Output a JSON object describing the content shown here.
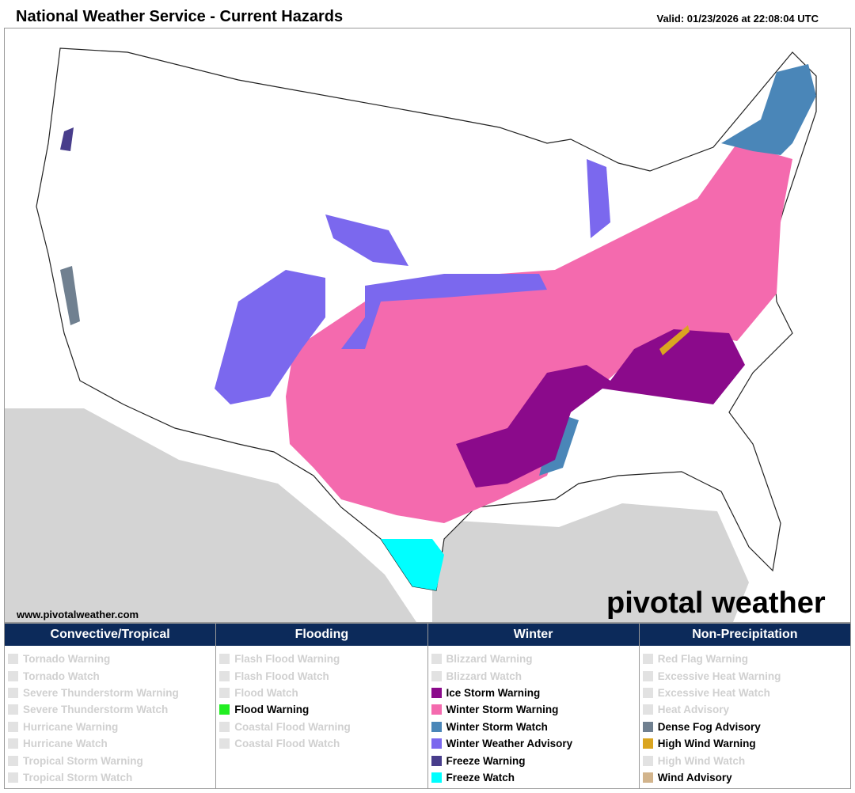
{
  "header": {
    "title": "National Weather Service - Current Hazards",
    "valid": "Valid: 01/23/2026 at 22:08:04 UTC"
  },
  "map": {
    "source": "www.pivotalweather.com",
    "logo": "pivotal weather"
  },
  "legend": [
    {
      "title": "Convective/Tropical",
      "items": [
        {
          "label": "Tornado Warning",
          "active": false
        },
        {
          "label": "Tornado Watch",
          "active": false
        },
        {
          "label": "Severe Thunderstorm Warning",
          "active": false
        },
        {
          "label": "Severe Thunderstorm Watch",
          "active": false
        },
        {
          "label": "Hurricane Warning",
          "active": false
        },
        {
          "label": "Hurricane Watch",
          "active": false
        },
        {
          "label": "Tropical Storm Warning",
          "active": false
        },
        {
          "label": "Tropical Storm Watch",
          "active": false
        }
      ]
    },
    {
      "title": "Flooding",
      "items": [
        {
          "label": "Flash Flood Warning",
          "active": false
        },
        {
          "label": "Flash Flood Watch",
          "active": false
        },
        {
          "label": "Flood Watch",
          "active": false
        },
        {
          "label": "Flood Warning",
          "active": true,
          "color": "#22ee22"
        },
        {
          "label": "Coastal Flood Warning",
          "active": false
        },
        {
          "label": "Coastal Flood Watch",
          "active": false
        }
      ]
    },
    {
      "title": "Winter",
      "items": [
        {
          "label": "Blizzard Warning",
          "active": false
        },
        {
          "label": "Blizzard Watch",
          "active": false
        },
        {
          "label": "Ice Storm Warning",
          "active": true,
          "color": "#8b0a8b"
        },
        {
          "label": "Winter Storm Warning",
          "active": true,
          "color": "#f46aae"
        },
        {
          "label": "Winter Storm Watch",
          "active": true,
          "color": "#4a86b8"
        },
        {
          "label": "Winter Weather Advisory",
          "active": true,
          "color": "#7b68ee"
        },
        {
          "label": "Freeze Warning",
          "active": true,
          "color": "#483d8b"
        },
        {
          "label": "Freeze Watch",
          "active": true,
          "color": "#00ffff"
        }
      ]
    },
    {
      "title": "Non-Precipitation",
      "items": [
        {
          "label": "Red Flag Warning",
          "active": false
        },
        {
          "label": "Excessive Heat Warning",
          "active": false
        },
        {
          "label": "Excessive Heat Watch",
          "active": false
        },
        {
          "label": "Heat Advisory",
          "active": false
        },
        {
          "label": "Dense Fog Advisory",
          "active": true,
          "color": "#708090"
        },
        {
          "label": "High Wind Warning",
          "active": true,
          "color": "#daa520"
        },
        {
          "label": "High Wind Watch",
          "active": false
        },
        {
          "label": "Wind Advisory",
          "active": true,
          "color": "#d2b48c"
        }
      ]
    }
  ]
}
